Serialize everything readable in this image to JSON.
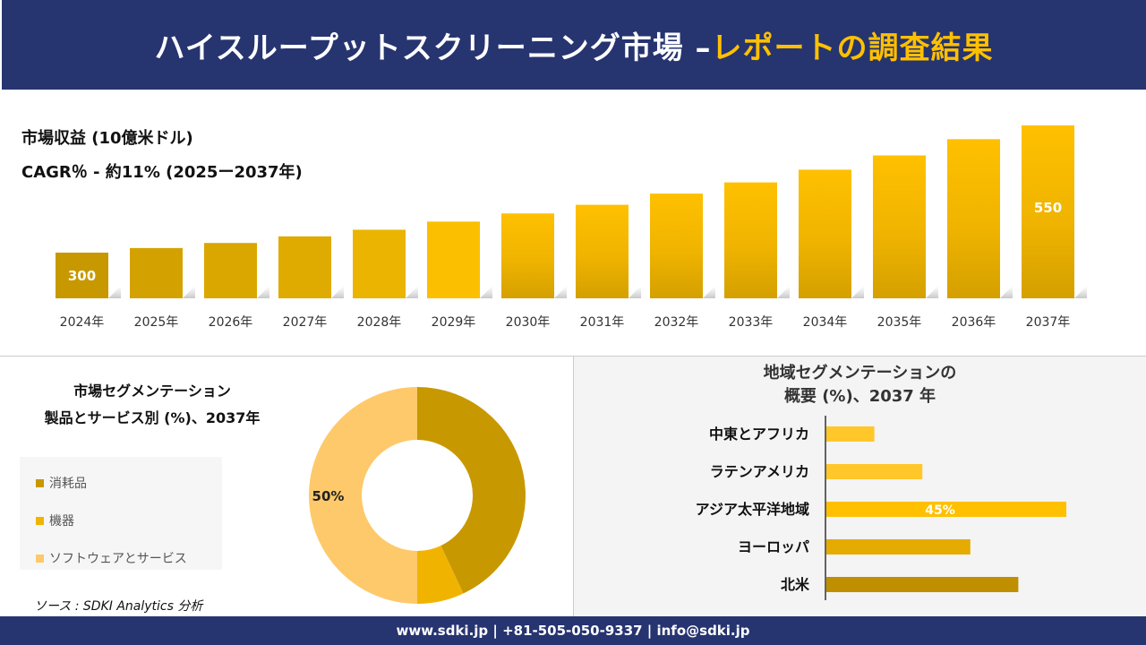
{
  "header": {
    "title_main": "ハイスループットスクリーニング市場 – ",
    "title_accent": "レポートの調査結果"
  },
  "revenue": {
    "title": "市場収益 (10億米ドル)",
    "cagr": "CAGR％ - 約11% (2025ー2037年)"
  },
  "segment": {
    "title_line1": "市場セグメンテーション",
    "title_line2": "製品とサービス別 (%)、2037年"
  },
  "region": {
    "title_line1": "地域セグメンテーションの",
    "title_line2": "概要 (%)、2037 年"
  },
  "source": "ソース : SDKI Analytics 分析",
  "footer": "www.sdki.jp | +81-505-050-9337 | info@sdki.jp",
  "chart_data": [
    {
      "type": "bar",
      "title": "市場収益 (10億米ドル)",
      "categories": [
        "2024年",
        "2025年",
        "2026年",
        "2027年",
        "2028年",
        "2029年",
        "2030年",
        "2031年",
        "2032年",
        "2033年",
        "2034年",
        "2035年",
        "2036年",
        "2037年"
      ],
      "values": [
        300,
        309,
        319,
        332,
        345,
        361,
        377,
        394,
        416,
        438,
        463,
        491,
        523,
        550
      ],
      "data_labels": {
        "0": "300",
        "13": "550"
      },
      "colors": [
        "#c89800",
        "#d4a200",
        "#daa700",
        "#e0ab00",
        "#eab400",
        "#fbbf00",
        "#f5b900",
        "#f5b900",
        "#f5b900",
        "#f5b900",
        "#f5b900",
        "#f5b900",
        "#f5b900",
        "#f5b900"
      ]
    },
    {
      "type": "pie",
      "donut": true,
      "categories": [
        "消耗品",
        "機器",
        "ソフトウェアとサービス"
      ],
      "values": [
        43,
        7,
        50
      ],
      "colors": [
        "#c89800",
        "#f0b400",
        "#fec96a"
      ],
      "data_labels": {
        "2": "50%"
      }
    },
    {
      "type": "bar",
      "orientation": "horizontal",
      "title": "地域セグメンテーションの概要 (%)、2037 年",
      "categories": [
        "中東とアフリカ",
        "ラテンアメリカ",
        "アジア太平洋地域",
        "ヨーロッパ",
        "北米"
      ],
      "values": [
        9,
        18,
        45,
        27,
        36
      ],
      "colors": [
        "#ffc729",
        "#ffc729",
        "#ffc000",
        "#e5ab00",
        "#bf8f00"
      ],
      "data_labels": {
        "2": "45%"
      }
    }
  ]
}
